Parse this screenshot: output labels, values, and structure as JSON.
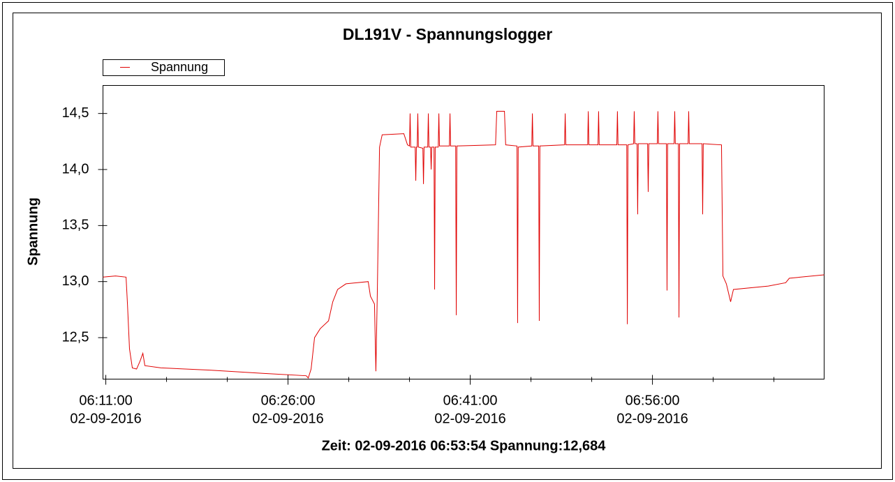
{
  "chart_data": {
    "type": "line",
    "title": "DL191V - Spannungslogger",
    "ylabel": "Spannung",
    "footer": "Zeit: 02-09-2016 06:53:54 Spannung:12,684",
    "legend": "top-left",
    "grid": false,
    "xlim": [
      "02-09-2016 06:10:46",
      "02-09-2016 07:10:08"
    ],
    "ylim": [
      12.13,
      14.75
    ],
    "yticks": [
      {
        "value": 12.5,
        "label": "12,5"
      },
      {
        "value": 13.0,
        "label": "13,0"
      },
      {
        "value": 13.5,
        "label": "13,5"
      },
      {
        "value": 14.0,
        "label": "14,0"
      },
      {
        "value": 14.5,
        "label": "14,5"
      }
    ],
    "xticks": [
      {
        "value": "02-09-2016 06:11:00",
        "label": [
          "06:11:00",
          "02-09-2016"
        ]
      },
      {
        "value": "02-09-2016 06:26:00",
        "label": [
          "06:26:00",
          "02-09-2016"
        ]
      },
      {
        "value": "02-09-2016 06:41:00",
        "label": [
          "06:41:00",
          "02-09-2016"
        ]
      },
      {
        "value": "02-09-2016 06:56:00",
        "label": [
          "06:56:00",
          "02-09-2016"
        ]
      }
    ],
    "xminorticks": [
      "02-09-2016 06:16:00",
      "02-09-2016 06:21:00",
      "02-09-2016 06:31:00",
      "02-09-2016 06:36:00",
      "02-09-2016 06:46:00",
      "02-09-2016 06:51:00",
      "02-09-2016 07:01:00",
      "02-09-2016 07:06:00"
    ],
    "series": [
      {
        "name": "Spannung",
        "color": "#e00000",
        "x": [
          "02-09-2016 06:10:46",
          "02-09-2016 06:11:48",
          "02-09-2016 06:12:40",
          "02-09-2016 06:12:47",
          "02-09-2016 06:12:57",
          "02-09-2016 06:13:11",
          "02-09-2016 06:13:32",
          "02-09-2016 06:13:49",
          "02-09-2016 06:14:03",
          "02-09-2016 06:14:13",
          "02-09-2016 06:15:32",
          "02-09-2016 06:19:34",
          "02-09-2016 06:24:10",
          "02-09-2016 06:27:30",
          "02-09-2016 06:27:40",
          "02-09-2016 06:27:54",
          "02-09-2016 06:28:11",
          "02-09-2016 06:28:39",
          "02-09-2016 06:29:20",
          "02-09-2016 06:29:41",
          "02-09-2016 06:30:05",
          "02-09-2016 06:30:46",
          "02-09-2016 06:32:36",
          "02-09-2016 06:32:47",
          "02-09-2016 06:33:07",
          "02-09-2016 06:33:14",
          "02-09-2016 06:33:21",
          "02-09-2016 06:33:32",
          "02-09-2016 06:33:45",
          "02-09-2016 06:35:32",
          "02-09-2016 06:35:50",
          "02-09-2016 06:36:00",
          "02-09-2016 06:36:03",
          "02-09-2016 06:36:06",
          "02-09-2016 06:36:28",
          "02-09-2016 06:36:31",
          "02-09-2016 06:36:34",
          "02-09-2016 06:36:38",
          "02-09-2016 06:36:41",
          "02-09-2016 06:36:44",
          "02-09-2016 06:37:06",
          "02-09-2016 06:37:09",
          "02-09-2016 06:37:12",
          "02-09-2016 06:37:30",
          "02-09-2016 06:37:33",
          "02-09-2016 06:37:36",
          "02-09-2016 06:37:44",
          "02-09-2016 06:37:47",
          "02-09-2016 06:37:50",
          "02-09-2016 06:38:01",
          "02-09-2016 06:38:04",
          "02-09-2016 06:38:07",
          "02-09-2016 06:38:22",
          "02-09-2016 06:38:25",
          "02-09-2016 06:38:28",
          "02-09-2016 06:39:17",
          "02-09-2016 06:39:20",
          "02-09-2016 06:39:23",
          "02-09-2016 06:39:48",
          "02-09-2016 06:39:51",
          "02-09-2016 06:39:54",
          "02-09-2016 06:43:05",
          "02-09-2016 06:43:11",
          "02-09-2016 06:43:49",
          "02-09-2016 06:43:55",
          "02-09-2016 06:44:51",
          "02-09-2016 06:44:54",
          "02-09-2016 06:44:57",
          "02-09-2016 06:46:04",
          "02-09-2016 06:46:07",
          "02-09-2016 06:46:10",
          "02-09-2016 06:46:38",
          "02-09-2016 06:46:41",
          "02-09-2016 06:46:44",
          "02-09-2016 06:48:46",
          "02-09-2016 06:48:49",
          "02-09-2016 06:48:52",
          "02-09-2016 06:50:40",
          "02-09-2016 06:50:43",
          "02-09-2016 06:50:46",
          "02-09-2016 06:51:31",
          "02-09-2016 06:51:34",
          "02-09-2016 06:51:37",
          "02-09-2016 06:53:04",
          "02-09-2016 06:53:07",
          "02-09-2016 06:53:10",
          "02-09-2016 06:53:53",
          "02-09-2016 06:53:56",
          "02-09-2016 06:53:59",
          "02-09-2016 06:54:27",
          "02-09-2016 06:54:30",
          "02-09-2016 06:54:33",
          "02-09-2016 06:54:44",
          "02-09-2016 06:54:47",
          "02-09-2016 06:54:50",
          "02-09-2016 06:55:36",
          "02-09-2016 06:55:39",
          "02-09-2016 06:55:42",
          "02-09-2016 06:56:24",
          "02-09-2016 06:56:27",
          "02-09-2016 06:56:30",
          "02-09-2016 06:57:09",
          "02-09-2016 06:57:12",
          "02-09-2016 06:57:15",
          "02-09-2016 06:57:47",
          "02-09-2016 06:57:50",
          "02-09-2016 06:57:53",
          "02-09-2016 06:58:08",
          "02-09-2016 06:58:11",
          "02-09-2016 06:58:14",
          "02-09-2016 06:58:56",
          "02-09-2016 06:58:59",
          "02-09-2016 06:59:02",
          "02-09-2016 07:00:05",
          "02-09-2016 07:00:08",
          "02-09-2016 07:00:11",
          "02-09-2016 07:01:41",
          "02-09-2016 07:01:48",
          "02-09-2016 07:02:05",
          "02-09-2016 07:02:26",
          "02-09-2016 07:02:40",
          "02-09-2016 07:05:32",
          "02-09-2016 07:06:58",
          "02-09-2016 07:07:16",
          "02-09-2016 07:10:08"
        ],
        "values": [
          13.04,
          13.05,
          13.04,
          12.8,
          12.4,
          12.23,
          12.22,
          12.29,
          12.36,
          12.25,
          12.23,
          12.21,
          12.18,
          12.16,
          12.14,
          12.22,
          12.5,
          12.58,
          12.65,
          12.82,
          12.93,
          12.98,
          13.0,
          12.87,
          12.8,
          12.2,
          12.9,
          14.2,
          14.31,
          14.32,
          14.22,
          14.21,
          14.5,
          14.2,
          14.2,
          13.9,
          14.2,
          14.2,
          14.5,
          14.2,
          14.19,
          13.87,
          14.2,
          14.2,
          14.5,
          14.2,
          14.2,
          14.0,
          14.2,
          14.2,
          12.93,
          14.2,
          14.2,
          14.5,
          14.21,
          14.21,
          14.5,
          14.21,
          14.21,
          12.7,
          14.21,
          14.22,
          14.52,
          14.52,
          14.22,
          14.21,
          12.63,
          14.2,
          14.21,
          14.5,
          14.21,
          14.21,
          12.65,
          14.21,
          14.22,
          14.5,
          14.22,
          14.22,
          14.52,
          14.22,
          14.22,
          14.52,
          14.22,
          14.22,
          14.52,
          14.22,
          14.22,
          12.62,
          14.22,
          14.23,
          14.52,
          14.23,
          14.23,
          13.6,
          14.23,
          14.23,
          13.8,
          14.23,
          14.23,
          14.52,
          14.23,
          14.23,
          12.92,
          14.23,
          14.23,
          14.52,
          14.23,
          14.23,
          12.68,
          14.23,
          14.23,
          14.52,
          14.23,
          14.23,
          13.6,
          14.23,
          14.22,
          13.05,
          12.98,
          12.82,
          12.93,
          12.96,
          12.99,
          13.03,
          13.06
        ]
      }
    ]
  }
}
